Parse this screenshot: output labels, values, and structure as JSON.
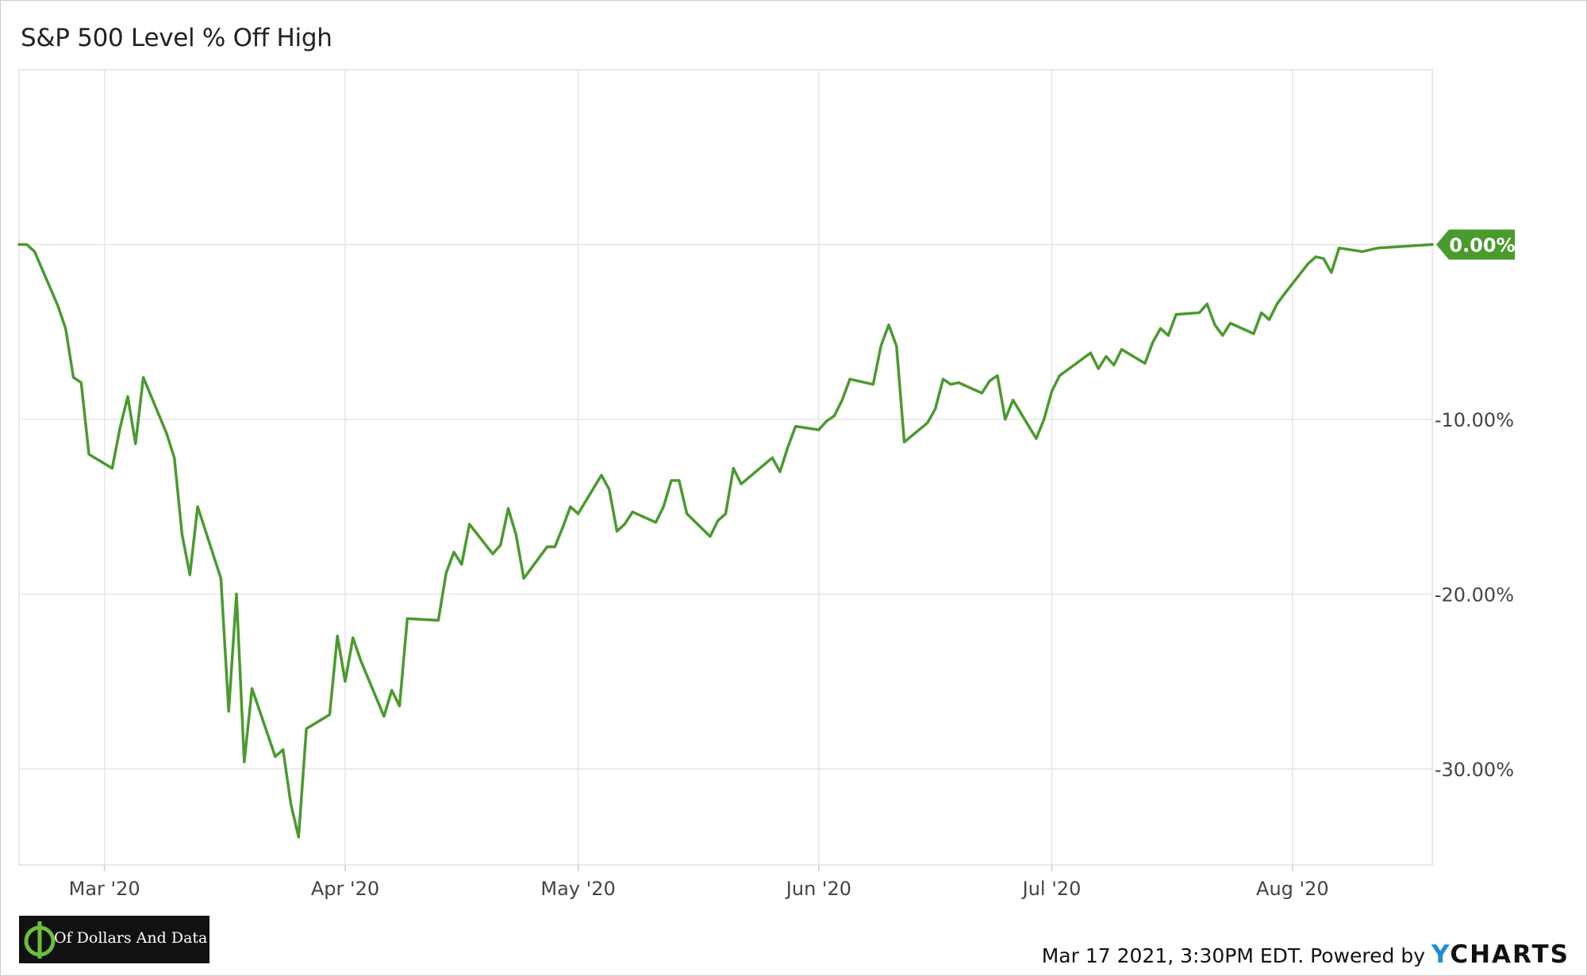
{
  "chart_data": {
    "type": "line",
    "title": "S&P 500 Level % Off High",
    "x_tick_labels": [
      "Mar '20",
      "Apr '20",
      "May '20",
      "Jun '20",
      "Jul '20",
      "Aug '20"
    ],
    "x_tick_dates": [
      "2020-03-01",
      "2020-04-01",
      "2020-05-01",
      "2020-06-01",
      "2020-07-01",
      "2020-08-01"
    ],
    "y_tick_values": [
      0,
      -10,
      -20,
      -30
    ],
    "y_tick_labels": [
      "0.00%",
      "-10.00%",
      "-20.00%",
      "-30.00%"
    ],
    "xlim": [
      "2020-02-19",
      "2020-08-19"
    ],
    "ylim": [
      -35.5,
      10
    ],
    "grid": true,
    "series_color": "#4a9a2e",
    "last_value_label": "0.00%",
    "series": [
      {
        "points": [
          [
            "2020-02-19",
            0.0
          ],
          [
            "2020-02-20",
            -0.0
          ],
          [
            "2020-02-21",
            -0.4
          ],
          [
            "2020-02-24",
            -3.5
          ],
          [
            "2020-02-25",
            -4.8
          ],
          [
            "2020-02-26",
            -7.6
          ],
          [
            "2020-02-27",
            -7.9
          ],
          [
            "2020-02-28",
            -12.0
          ],
          [
            "2020-03-02",
            -12.8
          ],
          [
            "2020-03-03",
            -10.5
          ],
          [
            "2020-03-04",
            -8.7
          ],
          [
            "2020-03-05",
            -11.4
          ],
          [
            "2020-03-06",
            -7.6
          ],
          [
            "2020-03-09",
            -10.8
          ],
          [
            "2020-03-10",
            -12.2
          ],
          [
            "2020-03-11",
            -16.6
          ],
          [
            "2020-03-12",
            -18.9
          ],
          [
            "2020-03-13",
            -15.0
          ],
          [
            "2020-03-16",
            -19.1
          ],
          [
            "2020-03-17",
            -26.7
          ],
          [
            "2020-03-18",
            -20.0
          ],
          [
            "2020-03-19",
            -29.6
          ],
          [
            "2020-03-20",
            -25.4
          ],
          [
            "2020-03-23",
            -29.3
          ],
          [
            "2020-03-24",
            -28.9
          ],
          [
            "2020-03-25",
            -32.0
          ],
          [
            "2020-03-26",
            -33.9
          ],
          [
            "2020-03-27",
            -27.7
          ],
          [
            "2020-03-30",
            -26.9
          ],
          [
            "2020-03-31",
            -22.4
          ],
          [
            "2020-04-01",
            -25.0
          ],
          [
            "2020-04-02",
            -22.5
          ],
          [
            "2020-04-03",
            -23.8
          ],
          [
            "2020-04-06",
            -27.0
          ],
          [
            "2020-04-07",
            -25.5
          ],
          [
            "2020-04-08",
            -26.4
          ],
          [
            "2020-04-09",
            -21.4
          ],
          [
            "2020-04-13",
            -21.5
          ],
          [
            "2020-04-14",
            -18.8
          ],
          [
            "2020-04-15",
            -17.6
          ],
          [
            "2020-04-16",
            -18.3
          ],
          [
            "2020-04-17",
            -16.0
          ],
          [
            "2020-04-20",
            -17.7
          ],
          [
            "2020-04-21",
            -17.2
          ],
          [
            "2020-04-22",
            -15.1
          ],
          [
            "2020-04-23",
            -16.6
          ],
          [
            "2020-04-24",
            -19.1
          ],
          [
            "2020-04-27",
            -17.3
          ],
          [
            "2020-04-28",
            -17.3
          ],
          [
            "2020-04-29",
            -16.2
          ],
          [
            "2020-04-30",
            -15.0
          ],
          [
            "2020-05-01",
            -15.4
          ],
          [
            "2020-05-04",
            -13.2
          ],
          [
            "2020-05-05",
            -14.0
          ],
          [
            "2020-05-06",
            -16.4
          ],
          [
            "2020-05-07",
            -16.0
          ],
          [
            "2020-05-08",
            -15.3
          ],
          [
            "2020-05-11",
            -15.9
          ],
          [
            "2020-05-12",
            -15.0
          ],
          [
            "2020-05-13",
            -13.5
          ],
          [
            "2020-05-14",
            -13.5
          ],
          [
            "2020-05-15",
            -15.4
          ],
          [
            "2020-05-18",
            -16.7
          ],
          [
            "2020-05-19",
            -15.8
          ],
          [
            "2020-05-20",
            -15.4
          ],
          [
            "2020-05-21",
            -12.8
          ],
          [
            "2020-05-22",
            -13.7
          ],
          [
            "2020-05-26",
            -12.2
          ],
          [
            "2020-05-27",
            -13.0
          ],
          [
            "2020-05-28",
            -11.6
          ],
          [
            "2020-05-29",
            -10.4
          ],
          [
            "2020-06-01",
            -10.6
          ],
          [
            "2020-06-02",
            -10.1
          ],
          [
            "2020-06-03",
            -9.8
          ],
          [
            "2020-06-04",
            -8.9
          ],
          [
            "2020-06-05",
            -7.7
          ],
          [
            "2020-06-08",
            -8.0
          ],
          [
            "2020-06-09",
            -5.8
          ],
          [
            "2020-06-10",
            -4.6
          ],
          [
            "2020-06-11",
            -5.8
          ],
          [
            "2020-06-12",
            -11.3
          ],
          [
            "2020-06-15",
            -10.2
          ],
          [
            "2020-06-16",
            -9.4
          ],
          [
            "2020-06-17",
            -7.7
          ],
          [
            "2020-06-18",
            -8.0
          ],
          [
            "2020-06-19",
            -7.9
          ],
          [
            "2020-06-22",
            -8.5
          ],
          [
            "2020-06-23",
            -7.8
          ],
          [
            "2020-06-24",
            -7.5
          ],
          [
            "2020-06-25",
            -10.0
          ],
          [
            "2020-06-26",
            -8.9
          ],
          [
            "2020-06-29",
            -11.1
          ],
          [
            "2020-06-30",
            -10.0
          ],
          [
            "2020-07-01",
            -8.4
          ],
          [
            "2020-07-02",
            -7.5
          ],
          [
            "2020-07-06",
            -6.2
          ],
          [
            "2020-07-07",
            -7.1
          ],
          [
            "2020-07-08",
            -6.4
          ],
          [
            "2020-07-09",
            -6.9
          ],
          [
            "2020-07-10",
            -6.0
          ],
          [
            "2020-07-13",
            -6.8
          ],
          [
            "2020-07-14",
            -5.6
          ],
          [
            "2020-07-15",
            -4.8
          ],
          [
            "2020-07-16",
            -5.2
          ],
          [
            "2020-07-17",
            -4.0
          ],
          [
            "2020-07-20",
            -3.9
          ],
          [
            "2020-07-21",
            -3.4
          ],
          [
            "2020-07-22",
            -4.6
          ],
          [
            "2020-07-23",
            -5.2
          ],
          [
            "2020-07-24",
            -4.5
          ],
          [
            "2020-07-27",
            -5.1
          ],
          [
            "2020-07-28",
            -3.9
          ],
          [
            "2020-07-29",
            -4.3
          ],
          [
            "2020-07-30",
            -3.4
          ],
          [
            "2020-07-31",
            -2.8
          ],
          [
            "2020-08-03",
            -1.1
          ],
          [
            "2020-08-04",
            -0.7
          ],
          [
            "2020-08-05",
            -0.8
          ],
          [
            "2020-08-06",
            -1.6
          ],
          [
            "2020-08-07",
            -0.2
          ],
          [
            "2020-08-10",
            -0.4
          ],
          [
            "2020-08-11",
            -0.3
          ],
          [
            "2020-08-12",
            -0.2
          ],
          [
            "2020-08-19",
            0.0
          ]
        ]
      }
    ]
  },
  "footer": {
    "timestamp": "Mar 17 2021, 3:30PM EDT.",
    "powered_by": "Powered by",
    "brand_y": "Y",
    "brand_rest": "CHARTS"
  },
  "logo": {
    "text": "Of Dollars And Data"
  }
}
